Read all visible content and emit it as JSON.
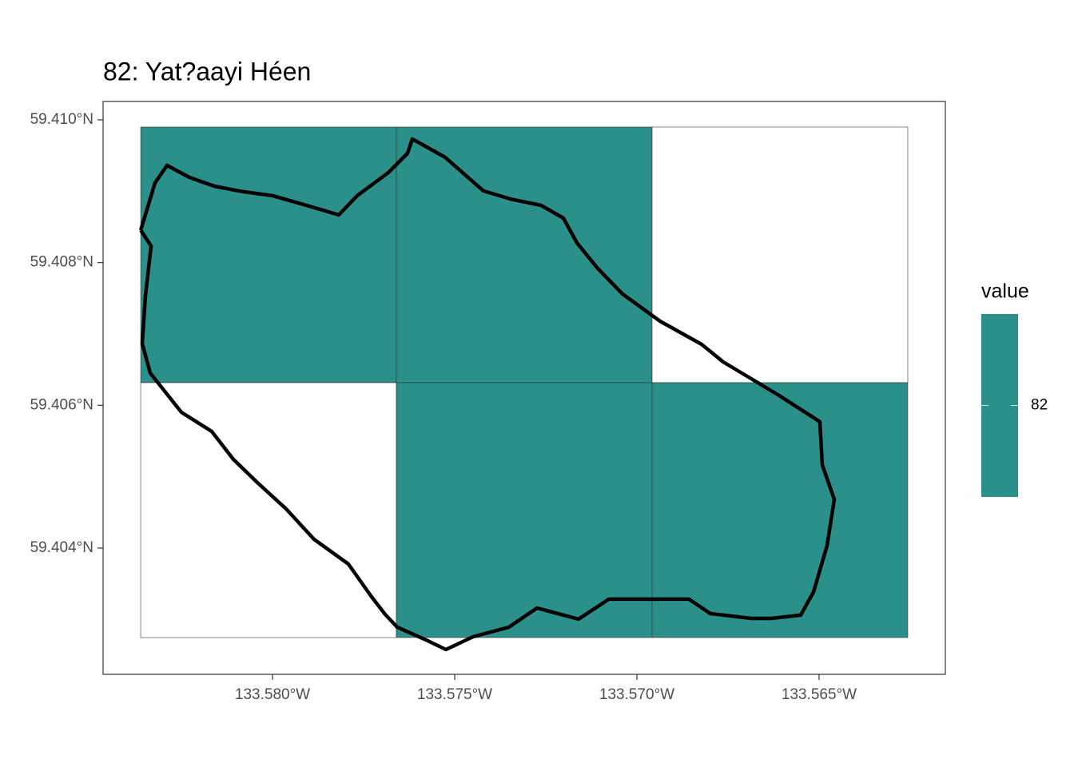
{
  "chart_data": {
    "type": "raster_map",
    "title": "82: Yat?aayi Héen",
    "xlim": [
      -133.58465,
      -133.561535
    ],
    "ylim": [
      59.402231,
      59.410257
    ],
    "xticks": [
      {
        "value": -133.58,
        "label": "133.580°W"
      },
      {
        "value": -133.575,
        "label": "133.575°W"
      },
      {
        "value": -133.57,
        "label": "133.570°W"
      },
      {
        "value": -133.565,
        "label": "133.565°W"
      }
    ],
    "yticks": [
      {
        "value": 59.404,
        "label": "59.404°N"
      },
      {
        "value": 59.406,
        "label": "59.406°N"
      },
      {
        "value": 59.408,
        "label": "59.408°N"
      },
      {
        "value": 59.41,
        "label": "59.410°N"
      }
    ],
    "raster": {
      "color": "#2c908a",
      "x_edges": [
        -133.583618,
        -133.576601,
        -133.569583,
        -133.562566
      ],
      "y_edges": [
        59.409899,
        59.406317,
        59.402746
      ],
      "values": [
        [
          82,
          82,
          null
        ],
        [
          null,
          82,
          82
        ]
      ]
    },
    "boundary": {
      "lon": [
        -133.583618,
        -133.583333,
        -133.583487,
        -133.583575,
        -133.583355,
        -133.5825,
        -133.581667,
        -133.581075,
        -133.580395,
        -133.579627,
        -133.57886,
        -133.577917,
        -133.577281,
        -133.576908,
        -133.576579,
        -133.575789,
        -133.575241,
        -133.574496,
        -133.573509,
        -133.572741,
        -133.571601,
        -133.570768,
        -133.569583,
        -133.568575,
        -133.567982,
        -133.566864,
        -133.566316,
        -133.565504,
        -133.565154,
        -133.564781,
        -133.564583,
        -133.564912,
        -133.564978,
        -133.566096,
        -133.566864,
        -133.567632,
        -133.568224,
        -133.569364,
        -133.570395,
        -133.571075,
        -133.571645,
        -133.572018,
        -133.572632,
        -133.573487,
        -133.574211,
        -133.575263,
        -133.576162,
        -133.576294,
        -133.57682,
        -133.577675,
        -133.57818,
        -133.579145,
        -133.58,
        -133.580811,
        -133.581601,
        -133.582281,
        -133.582895,
        -133.583224,
        -133.583618
      ],
      "lat": [
        59.408455,
        59.408231,
        59.407537,
        59.406866,
        59.406452,
        59.405903,
        59.405634,
        59.405243,
        59.404907,
        59.404549,
        59.404123,
        59.403776,
        59.403317,
        59.403071,
        59.402892,
        59.402713,
        59.402578,
        59.402757,
        59.402892,
        59.40316,
        59.403004,
        59.403284,
        59.403284,
        59.403284,
        59.403082,
        59.403015,
        59.403015,
        59.40306,
        59.403384,
        59.404034,
        59.404683,
        59.405164,
        59.405769,
        59.406138,
        59.406373,
        59.406608,
        59.406854,
        59.407179,
        59.40756,
        59.407918,
        59.408276,
        59.408623,
        59.408802,
        59.408892,
        59.409004,
        59.409474,
        59.409731,
        59.40953,
        59.409261,
        59.408937,
        59.408668,
        59.408813,
        59.408937,
        59.408993,
        59.409071,
        59.409194,
        59.409362,
        59.409116,
        59.408455
      ]
    },
    "legend": {
      "title": "value",
      "ticks": [
        82
      ]
    }
  }
}
